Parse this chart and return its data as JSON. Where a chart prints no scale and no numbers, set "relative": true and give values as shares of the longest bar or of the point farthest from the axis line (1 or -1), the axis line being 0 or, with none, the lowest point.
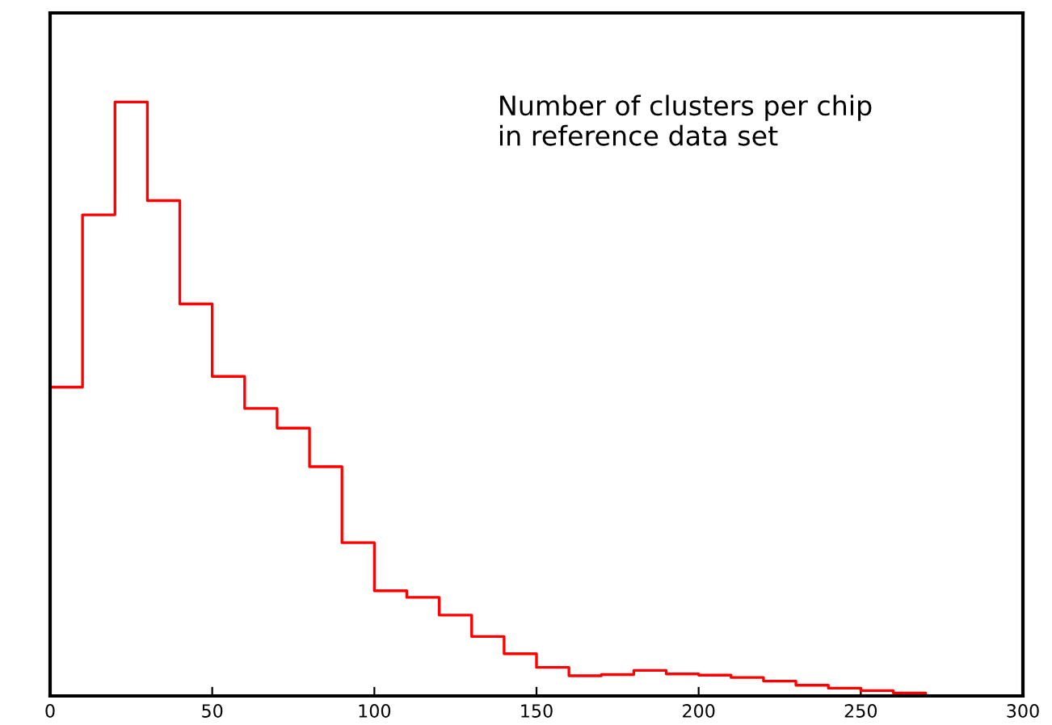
{
  "chart_data": {
    "type": "step",
    "relative": true,
    "x": [
      0,
      10,
      20,
      30,
      40,
      50,
      60,
      70,
      80,
      90,
      100,
      110,
      120,
      130,
      140,
      150,
      160,
      170,
      180,
      190,
      200,
      210,
      220,
      230,
      240,
      250,
      260,
      270
    ],
    "values": [
      0.52,
      0.81,
      1,
      0.834,
      0.66,
      0.538,
      0.484,
      0.451,
      0.386,
      0.258,
      0.177,
      0.166,
      0.136,
      0.1,
      0.071,
      0.048,
      0.034,
      0.036,
      0.043,
      0.037,
      0.035,
      0.031,
      0.025,
      0.018,
      0.013,
      0.009,
      0.005,
      0
    ],
    "color": "#ff0000",
    "xlim": [
      0,
      300
    ],
    "xticks": [
      0,
      50,
      100,
      150,
      200,
      250,
      300
    ],
    "annotations": [
      "Number of clusters per chip\nin reference data set"
    ],
    "grid": false,
    "legend": false
  }
}
